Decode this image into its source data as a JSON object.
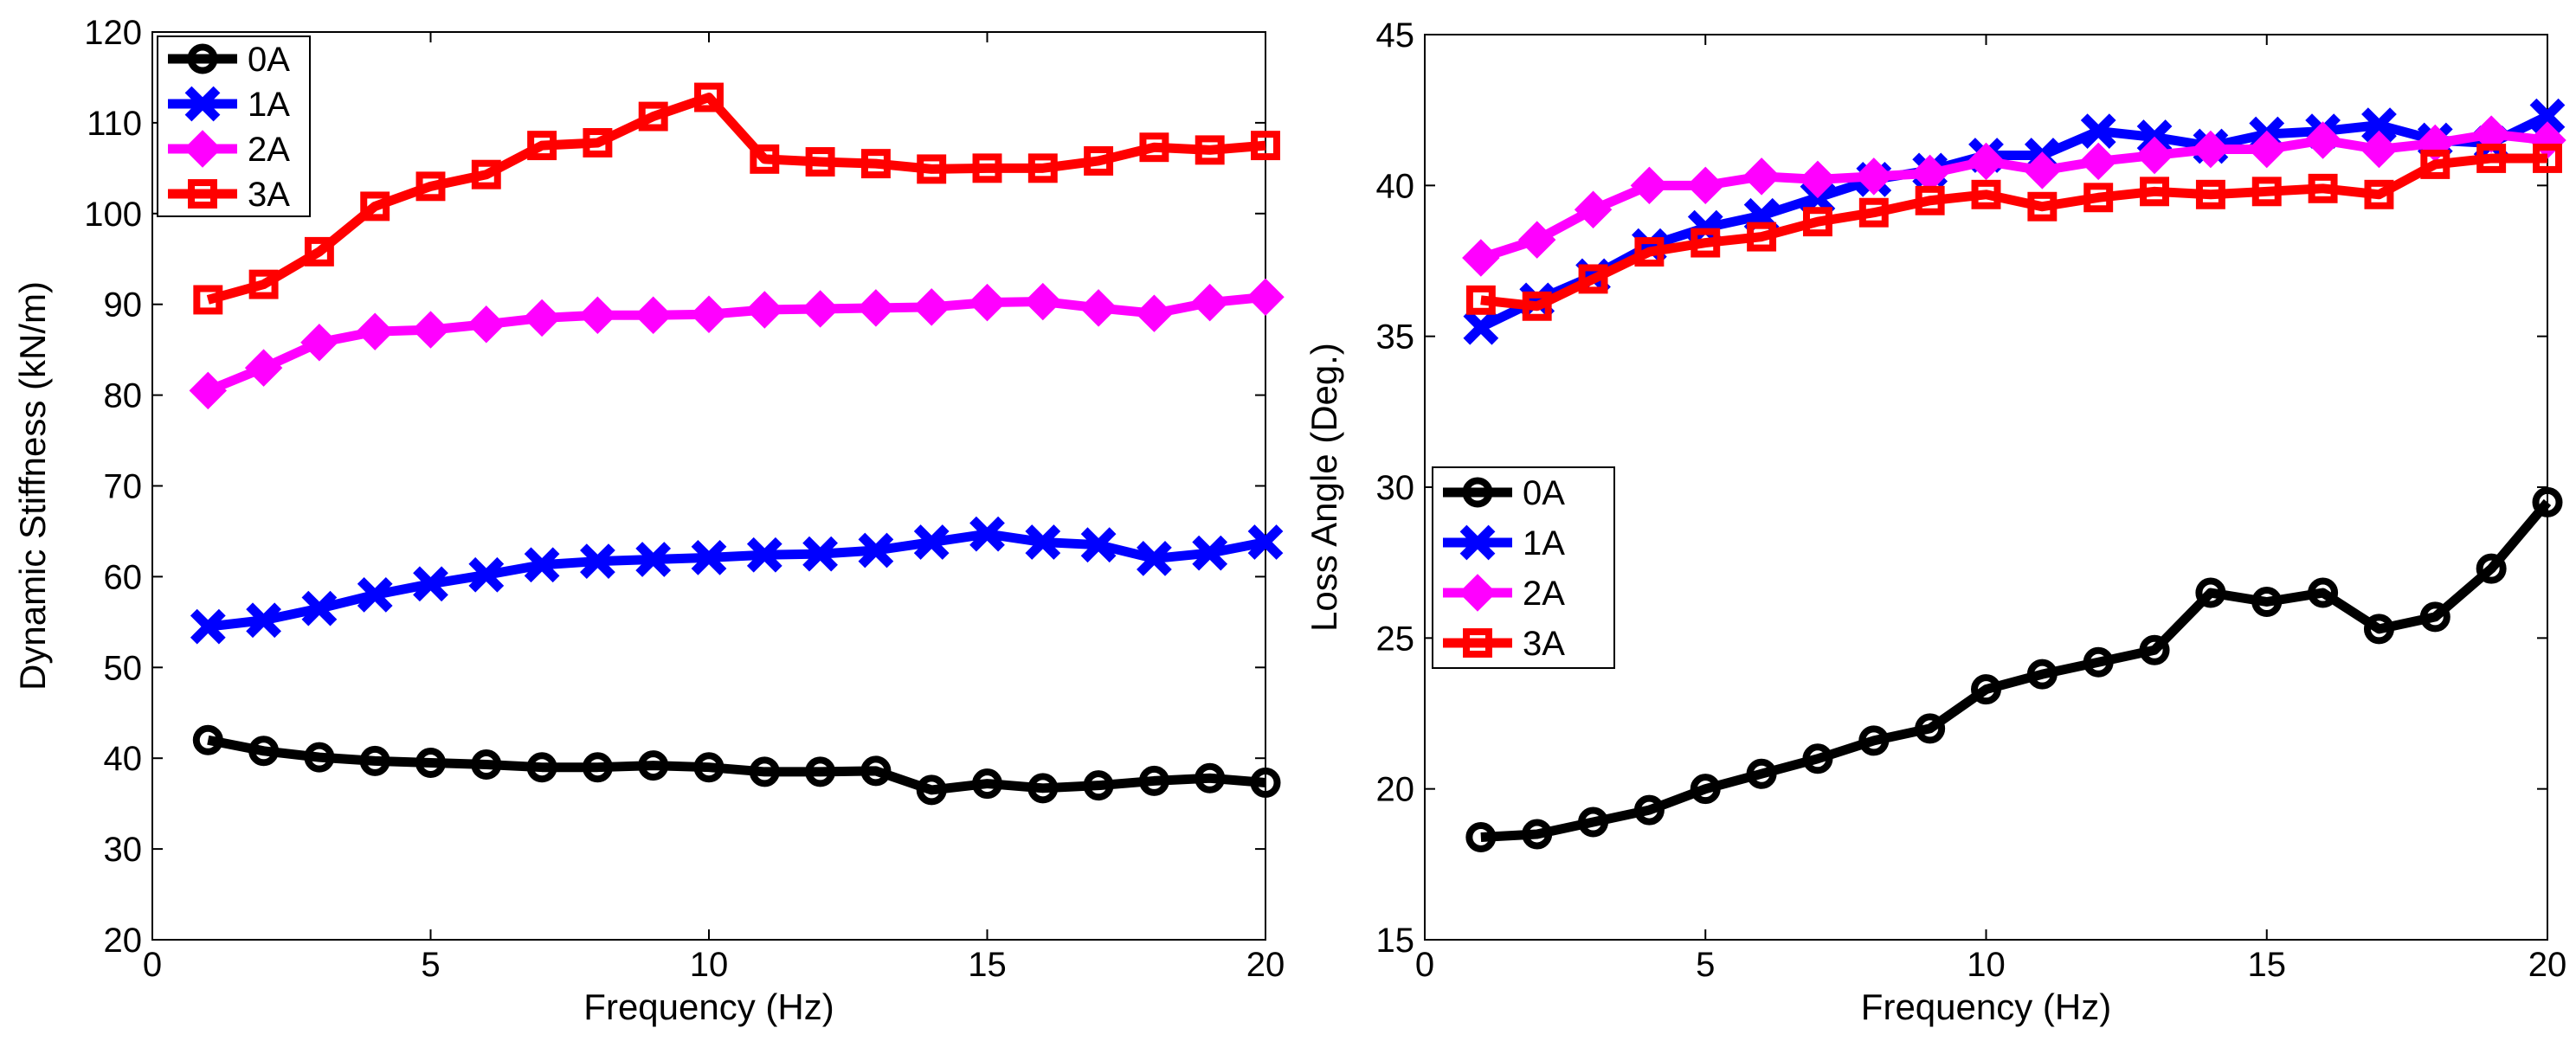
{
  "chart_data": [
    {
      "type": "line",
      "title": "",
      "xlabel": "Frequency (Hz)",
      "ylabel": "Dynamic Stiffness (kN/m)",
      "xlim": [
        0,
        20
      ],
      "ylim": [
        20,
        120
      ],
      "xticks": [
        0,
        5,
        10,
        15,
        20
      ],
      "yticks": [
        20,
        30,
        40,
        50,
        60,
        70,
        80,
        90,
        100,
        110,
        120
      ],
      "grid": false,
      "legend_position": "top-left",
      "x": [
        1,
        2,
        3,
        4,
        5,
        6,
        7,
        8,
        9,
        10,
        11,
        12,
        13,
        14,
        15,
        16,
        17,
        18,
        19,
        20
      ],
      "series": [
        {
          "name": "0A",
          "color": "#000000",
          "marker": "circle",
          "values": [
            42.0,
            40.8,
            40.1,
            39.7,
            39.5,
            39.3,
            39.0,
            39.0,
            39.2,
            39.0,
            38.5,
            38.5,
            38.6,
            36.5,
            37.2,
            36.7,
            37.0,
            37.5,
            37.8,
            37.3
          ]
        },
        {
          "name": "1A",
          "color": "#0000ff",
          "marker": "x",
          "values": [
            54.5,
            55.2,
            56.5,
            58.0,
            59.2,
            60.2,
            61.3,
            61.7,
            61.9,
            62.1,
            62.4,
            62.5,
            62.9,
            63.8,
            64.7,
            63.8,
            63.5,
            62.0,
            62.6,
            63.8
          ]
        },
        {
          "name": "2A",
          "color": "#ff00ff",
          "marker": "diamond",
          "values": [
            80.5,
            83.0,
            85.8,
            87.0,
            87.2,
            87.8,
            88.5,
            88.8,
            88.8,
            88.9,
            89.4,
            89.5,
            89.6,
            89.7,
            90.2,
            90.3,
            89.6,
            89.0,
            90.2,
            90.8
          ]
        },
        {
          "name": "3A",
          "color": "#ff0000",
          "marker": "square",
          "values": [
            90.5,
            92.2,
            95.8,
            100.8,
            103.0,
            104.3,
            107.5,
            107.8,
            110.7,
            112.8,
            106.0,
            105.7,
            105.5,
            104.9,
            105.0,
            105.0,
            105.8,
            107.3,
            107.0,
            107.5
          ]
        }
      ]
    },
    {
      "type": "line",
      "title": "",
      "xlabel": "Frequency (Hz)",
      "ylabel": "Loss Angle (Deg.)",
      "xlim": [
        0,
        20
      ],
      "ylim": [
        15,
        45
      ],
      "xticks": [
        0,
        5,
        10,
        15,
        20
      ],
      "yticks": [
        15,
        20,
        25,
        30,
        35,
        40,
        45
      ],
      "grid": false,
      "legend_position": "middle-left",
      "x": [
        1,
        2,
        3,
        4,
        5,
        6,
        7,
        8,
        9,
        10,
        11,
        12,
        13,
        14,
        15,
        16,
        17,
        18,
        19,
        20
      ],
      "series": [
        {
          "name": "0A",
          "color": "#000000",
          "marker": "circle",
          "values": [
            18.4,
            18.5,
            18.9,
            19.3,
            20.0,
            20.5,
            21.0,
            21.6,
            22.0,
            23.3,
            23.8,
            24.2,
            24.6,
            26.5,
            26.2,
            26.5,
            25.3,
            25.7,
            27.3,
            29.5
          ]
        },
        {
          "name": "1A",
          "color": "#0000ff",
          "marker": "x",
          "values": [
            35.3,
            36.2,
            37.0,
            38.0,
            38.6,
            39.0,
            39.6,
            40.2,
            40.5,
            41.0,
            41.0,
            41.8,
            41.6,
            41.3,
            41.7,
            41.8,
            42.0,
            41.5,
            41.4,
            42.3
          ]
        },
        {
          "name": "2A",
          "color": "#ff00ff",
          "marker": "diamond",
          "values": [
            37.6,
            38.2,
            39.2,
            40.0,
            40.0,
            40.3,
            40.2,
            40.3,
            40.4,
            40.8,
            40.5,
            40.8,
            41.0,
            41.2,
            41.2,
            41.5,
            41.2,
            41.4,
            41.7,
            41.5
          ]
        },
        {
          "name": "3A",
          "color": "#ff0000",
          "marker": "square",
          "values": [
            36.2,
            36.0,
            36.9,
            37.8,
            38.1,
            38.3,
            38.8,
            39.1,
            39.5,
            39.7,
            39.3,
            39.6,
            39.8,
            39.7,
            39.8,
            39.9,
            39.7,
            40.7,
            40.9,
            40.9
          ]
        }
      ]
    }
  ]
}
